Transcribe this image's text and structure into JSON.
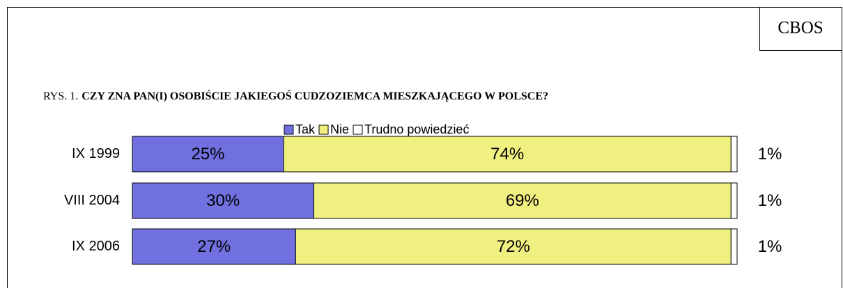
{
  "chart_data": {
    "type": "stacked_barh",
    "source": "CBOS",
    "figure_label": "RYS. 1.",
    "title": "CZY ZNA PAN(I) OSOBIŚCIE JAKIEGOŚ CUDZOZIEMCA MIESZKAJĄCEGO W POLSCE?",
    "categories": [
      "IX 1999",
      "VIII 2004",
      "IX 2006"
    ],
    "series": [
      {
        "name": "Tak",
        "color": "#7070e0",
        "values": [
          25,
          30,
          27
        ],
        "value_labels": [
          "25%",
          "30%",
          "27%"
        ]
      },
      {
        "name": "Nie",
        "color": "#f0f080",
        "values": [
          74,
          69,
          72
        ],
        "value_labels": [
          "74%",
          "69%",
          "72%"
        ]
      },
      {
        "name": "Trudno powiedzieć",
        "color": "#ffffff",
        "values": [
          1,
          1,
          1
        ],
        "value_labels": [
          "1%",
          "1%",
          "1%"
        ]
      }
    ],
    "xlim": [
      0,
      100
    ]
  }
}
